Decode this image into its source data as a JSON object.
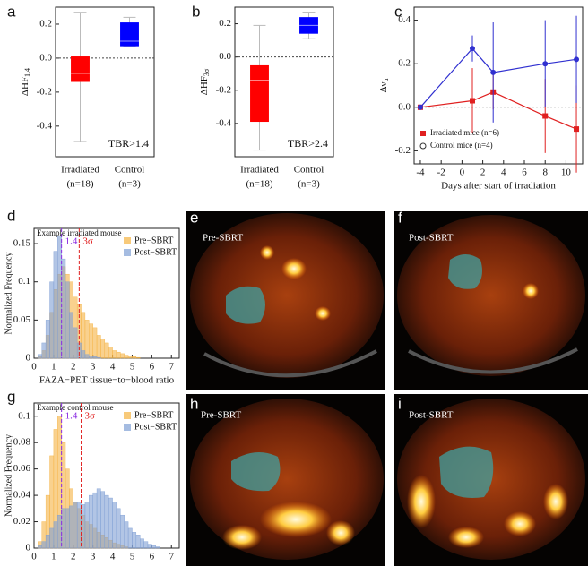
{
  "chart_data": [
    {
      "type": "box",
      "panel": "a",
      "ylabel": "ΔHF",
      "ylabel_sub": "1.4",
      "categories": [
        "Irradiated",
        "Control"
      ],
      "category_counts": [
        "(n=18)",
        "(n=3)"
      ],
      "colors": [
        "#ff0000",
        "#0000ff"
      ],
      "boxes": [
        {
          "low": -0.49,
          "q1": -0.14,
          "median": -0.09,
          "q3": 0.01,
          "high": 0.27
        },
        {
          "low": 0.07,
          "q1": 0.07,
          "median": 0.1,
          "q3": 0.21,
          "high": 0.24
        }
      ],
      "refline": 0,
      "ylim": [
        -0.58,
        0.3
      ],
      "yticks": [
        -0.4,
        -0.2,
        {
          "value": 0,
          "label": "0.0"
        },
        0.2
      ],
      "annotation": "TBR>1.4"
    },
    {
      "type": "box",
      "panel": "b",
      "ylabel": "ΔHF",
      "ylabel_sub": "3σ",
      "categories": [
        "Irradiated",
        "Control"
      ],
      "category_counts": [
        "(n=18)",
        "(n=3)"
      ],
      "colors": [
        "#ff0000",
        "#0000ff"
      ],
      "boxes": [
        {
          "low": -0.56,
          "q1": -0.39,
          "median": -0.14,
          "q3": -0.05,
          "high": 0.19
        },
        {
          "low": 0.11,
          "q1": 0.14,
          "median": 0.19,
          "q3": 0.24,
          "high": 0.27
        }
      ],
      "refline": 0,
      "ylim": [
        -0.6,
        0.3
      ],
      "yticks": [
        -0.4,
        -0.2,
        {
          "value": 0,
          "label": "0.0"
        },
        0.2
      ],
      "annotation": "TBR>2.4"
    },
    {
      "type": "line",
      "panel": "c",
      "ylabel": "Δν",
      "ylabel_sub": "u",
      "xlabel": "Days after start of irradiation",
      "xlim": [
        -4.6,
        11.6
      ],
      "xticks": [
        -4,
        -2,
        0,
        2,
        4,
        6,
        8,
        10
      ],
      "ylim": [
        -0.26,
        0.46
      ],
      "yticks": [
        -0.2,
        {
          "value": 0,
          "label": "0.0"
        },
        0.2,
        0.4
      ],
      "legend": "lower left",
      "series": [
        {
          "name": "Irradiated mice (n=6)",
          "color": "#e02020",
          "marker": "square",
          "x": [
            -4,
            1,
            3,
            8,
            11
          ],
          "values": [
            0,
            0.03,
            0.07,
            -0.04,
            -0.1
          ],
          "errors": [
            0,
            0.15,
            0.08,
            0.17,
            0.2
          ]
        },
        {
          "name": "Control mice (n=4)",
          "color": "#3030d0",
          "marker": "circle",
          "x": [
            -4,
            1,
            3,
            8,
            11
          ],
          "values": [
            0,
            0.27,
            0.16,
            0.2,
            0.22
          ],
          "errors": [
            0,
            0.06,
            0.23,
            0.2,
            0.2
          ]
        }
      ]
    },
    {
      "type": "histogram",
      "panel": "d",
      "title": "Example irradiated mouse",
      "ylabel": "Normalized Frequency",
      "xlabel": "FAZA−PET tissue−to−blood ratio",
      "xlim": [
        0,
        7.4
      ],
      "xticks": [
        0,
        1,
        2,
        3,
        4,
        5,
        6,
        7
      ],
      "ylim": [
        0,
        0.17
      ],
      "yticks": [
        0,
        0.05,
        0.1,
        0.15
      ],
      "legend": "upper right",
      "bins": [
        0,
        0.2,
        0.4,
        0.6,
        0.8,
        1,
        1.2,
        1.4,
        1.6,
        1.8,
        2,
        2.2,
        2.4,
        2.6,
        2.8,
        3,
        3.2,
        3.4,
        3.6,
        3.8,
        4,
        4.2,
        4.4,
        4.6,
        4.8,
        5,
        5.2,
        5.4,
        5.6,
        5.8,
        6,
        6.2,
        6.4,
        6.6,
        6.8,
        7
      ],
      "series": [
        {
          "name": "Pre−SBRT",
          "color": "#f5b342",
          "values": [
            0,
            0.002,
            0.01,
            0.03,
            0.06,
            0.09,
            0.11,
            0.12,
            0.11,
            0.1,
            0.08,
            0.07,
            0.06,
            0.05,
            0.045,
            0.04,
            0.03,
            0.025,
            0.02,
            0.015,
            0.01,
            0.008,
            0.006,
            0.004,
            0.003,
            0.002,
            0.001,
            0,
            0,
            0,
            0,
            0,
            0,
            0,
            0
          ]
        },
        {
          "name": "Post−SBRT",
          "color": "#7f9fd4",
          "values": [
            0,
            0.005,
            0.02,
            0.05,
            0.1,
            0.14,
            0.16,
            0.13,
            0.1,
            0.06,
            0.04,
            0.02,
            0.01,
            0.005,
            0.003,
            0.002,
            0.001,
            0,
            0,
            0,
            0,
            0,
            0,
            0,
            0,
            0,
            0,
            0,
            0,
            0,
            0,
            0,
            0,
            0,
            0
          ]
        }
      ],
      "vlines": [
        {
          "value": 1.4,
          "color": "#8a2be2"
        },
        {
          "value": 2.3,
          "label": "3σ",
          "color": "#e02020"
        }
      ]
    },
    {
      "type": "histogram",
      "panel": "g",
      "title": "Example control mouse",
      "ylabel": "Normalized Frequency",
      "xlabel": "FAZA−PET tissue−to−blood ratio",
      "xlim": [
        0,
        7.4
      ],
      "xticks": [
        0,
        1,
        2,
        3,
        4,
        5,
        6,
        7
      ],
      "ylim": [
        0,
        0.11
      ],
      "yticks": [
        0,
        0.02,
        0.04,
        0.06,
        0.08,
        0.1
      ],
      "legend": "upper right",
      "bins": [
        0,
        0.2,
        0.4,
        0.6,
        0.8,
        1,
        1.2,
        1.4,
        1.6,
        1.8,
        2,
        2.2,
        2.4,
        2.6,
        2.8,
        3,
        3.2,
        3.4,
        3.6,
        3.8,
        4,
        4.2,
        4.4,
        4.6,
        4.8,
        5,
        5.2,
        5.4,
        5.6,
        5.8,
        6,
        6.2,
        6.4,
        6.6,
        6.8,
        7
      ],
      "series": [
        {
          "name": "Pre−SBRT",
          "color": "#f5b342",
          "values": [
            0,
            0.005,
            0.02,
            0.04,
            0.07,
            0.09,
            0.1,
            0.08,
            0.06,
            0.045,
            0.035,
            0.03,
            0.025,
            0.02,
            0.018,
            0.015,
            0.012,
            0.01,
            0.008,
            0.006,
            0.004,
            0.003,
            0.002,
            0.001,
            0,
            0,
            0,
            0,
            0,
            0,
            0,
            0,
            0,
            0,
            0
          ]
        },
        {
          "name": "Post−SBRT",
          "color": "#7f9fd4",
          "values": [
            0,
            0.002,
            0.005,
            0.01,
            0.015,
            0.02,
            0.025,
            0.03,
            0.03,
            0.032,
            0.035,
            0.035,
            0.033,
            0.035,
            0.04,
            0.042,
            0.045,
            0.043,
            0.04,
            0.038,
            0.035,
            0.03,
            0.025,
            0.02,
            0.015,
            0.012,
            0.01,
            0.007,
            0.005,
            0.003,
            0.002,
            0.001,
            0,
            0,
            0
          ]
        }
      ],
      "vlines": [
        {
          "value": 1.4,
          "color": "#8a2be2"
        },
        {
          "value": 2.4,
          "label": "3σ",
          "color": "#e02020"
        }
      ]
    }
  ],
  "image_panels": [
    {
      "panel": "e",
      "label": "Pre-SBRT"
    },
    {
      "panel": "f",
      "label": "Post-SBRT"
    },
    {
      "panel": "h",
      "label": "Pre-SBRT"
    },
    {
      "panel": "i",
      "label": "Post-SBRT"
    }
  ]
}
